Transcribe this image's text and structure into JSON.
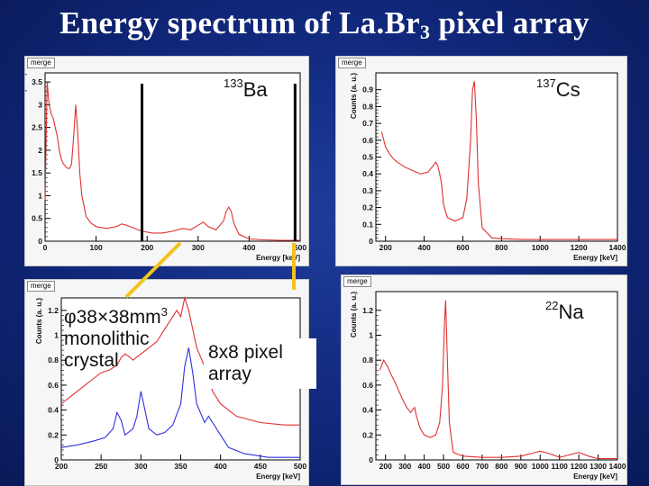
{
  "slide": {
    "title_main": "Energy spectrum of La.Br",
    "title_sub": "3",
    "title_end": " pixel array"
  },
  "panels": {
    "ba": {
      "merge_label": "merge",
      "isotope_mass": "133",
      "isotope_symbol": "Ba",
      "xlabel": "Energy [keV]",
      "ylabel": "Counts (a. u.)"
    },
    "cs": {
      "merge_label": "merge",
      "isotope_mass": "137",
      "isotope_symbol": "Cs",
      "xlabel": "Energy [keV]",
      "ylabel": "Counts (a. u.)"
    },
    "zoom": {
      "merge_label": "merge",
      "ylabel": "Counts (a. u.)",
      "xlabel": "Energy [keV]"
    },
    "na": {
      "merge_label": "merge",
      "isotope_mass": "22",
      "isotope_symbol": "Na",
      "xlabel": "Energy [keV]",
      "ylabel": "Counts (a. u.)"
    }
  },
  "callouts": {
    "crystal_line1_a": "φ38",
    "crystal_line1_b": "×",
    "crystal_line1_c": "38mm",
    "crystal_line1_sup": "3",
    "crystal_line2": "monolithic",
    "crystal_line3": "crystal",
    "pixel_line1": "8x8 pixel",
    "pixel_line2": "array"
  },
  "colors": {
    "background": "#12297e",
    "crystal_series": "#e03030",
    "pixel_series": "#3030e0",
    "connector": "#f0c419"
  },
  "chart_data": [
    {
      "id": "ba",
      "type": "line",
      "xlim": [
        0,
        500
      ],
      "ylim": [
        0,
        3.7
      ],
      "xticks": [
        0,
        100,
        200,
        300,
        400,
        500
      ],
      "yticks": [
        0,
        0.5,
        1,
        1.5,
        2,
        2.5,
        3,
        3.5
      ],
      "xlabel": "Energy [keV]",
      "ylabel": "Counts (a. u.)",
      "markers": [
        190,
        490
      ],
      "series": [
        {
          "color": "#e03030",
          "x": [
            0,
            4,
            8,
            12,
            16,
            20,
            24,
            28,
            32,
            36,
            40,
            44,
            48,
            52,
            56,
            60,
            64,
            68,
            72,
            76,
            80,
            90,
            100,
            120,
            140,
            150,
            160,
            175,
            190,
            210,
            230,
            250,
            270,
            285,
            300,
            310,
            320,
            335,
            350,
            355,
            360,
            365,
            370,
            380,
            400,
            430,
            460,
            490,
            500
          ],
          "y": [
            0.9,
            3.5,
            3.0,
            2.8,
            2.7,
            2.5,
            2.3,
            2.0,
            1.8,
            1.7,
            1.65,
            1.6,
            1.6,
            1.7,
            2.3,
            3.0,
            2.4,
            1.5,
            1.0,
            0.8,
            0.55,
            0.4,
            0.32,
            0.28,
            0.32,
            0.38,
            0.35,
            0.28,
            0.22,
            0.18,
            0.18,
            0.22,
            0.28,
            0.25,
            0.35,
            0.42,
            0.32,
            0.25,
            0.45,
            0.65,
            0.75,
            0.65,
            0.4,
            0.15,
            0.05,
            0.03,
            0.02,
            0.02,
            0.02
          ]
        }
      ]
    },
    {
      "id": "cs",
      "type": "line",
      "xlim": [
        150,
        1400
      ],
      "ylim": [
        0,
        1.0
      ],
      "xticks": [
        200,
        400,
        600,
        800,
        1000,
        1200,
        1400
      ],
      "yticks": [
        0,
        0.1,
        0.2,
        0.3,
        0.4,
        0.5,
        0.6,
        0.7,
        0.8,
        0.9
      ],
      "xlabel": "Energy [keV]",
      "ylabel": "Counts (a. u.)",
      "series": [
        {
          "color": "#e03030",
          "x": [
            180,
            200,
            220,
            240,
            260,
            300,
            340,
            380,
            420,
            440,
            460,
            470,
            480,
            490,
            500,
            520,
            560,
            600,
            620,
            640,
            650,
            660,
            670,
            680,
            700,
            750,
            800,
            900,
            1000,
            1100,
            1200,
            1300,
            1400
          ],
          "y": [
            0.65,
            0.56,
            0.52,
            0.49,
            0.47,
            0.44,
            0.42,
            0.4,
            0.41,
            0.44,
            0.47,
            0.45,
            0.4,
            0.34,
            0.22,
            0.14,
            0.12,
            0.14,
            0.25,
            0.6,
            0.9,
            0.95,
            0.72,
            0.35,
            0.08,
            0.02,
            0.015,
            0.01,
            0.01,
            0.01,
            0.01,
            0.01,
            0.01
          ]
        }
      ]
    },
    {
      "id": "zoom",
      "type": "line",
      "xlim": [
        200,
        500
      ],
      "ylim": [
        0,
        1.3
      ],
      "xticks": [
        200,
        250,
        300,
        350,
        400,
        450,
        500
      ],
      "yticks": [
        0,
        0.2,
        0.4,
        0.6,
        0.8,
        1,
        1.2
      ],
      "xlabel": "Energy [keV]",
      "ylabel": "Counts (a. u.)",
      "series": [
        {
          "color": "#e03030",
          "x": [
            200,
            210,
            220,
            230,
            240,
            250,
            260,
            270,
            275,
            280,
            285,
            290,
            300,
            310,
            320,
            330,
            340,
            345,
            350,
            355,
            360,
            365,
            370,
            380,
            390,
            400,
            420,
            450,
            480,
            500
          ],
          "y": [
            0.45,
            0.5,
            0.55,
            0.6,
            0.65,
            0.7,
            0.72,
            0.76,
            0.82,
            0.85,
            0.83,
            0.8,
            0.85,
            0.9,
            0.95,
            1.05,
            1.15,
            1.2,
            1.15,
            1.3,
            1.2,
            1.05,
            0.9,
            0.75,
            0.55,
            0.45,
            0.35,
            0.3,
            0.28,
            0.28
          ]
        }
      ]
    },
    {
      "id": "zoom-blue",
      "type": "line",
      "xlim": [
        200,
        500
      ],
      "ylim": [
        0,
        1.3
      ],
      "xticks": [
        200,
        250,
        300,
        350,
        400,
        450,
        500
      ],
      "yticks": [
        0,
        0.2,
        0.4,
        0.6,
        0.8,
        1,
        1.2
      ],
      "xlabel": "Energy [keV]",
      "ylabel": "Counts (a. u.)",
      "series": [
        {
          "color": "#3030e0",
          "x": [
            200,
            220,
            240,
            255,
            265,
            270,
            275,
            280,
            290,
            295,
            300,
            305,
            310,
            320,
            330,
            340,
            350,
            355,
            360,
            365,
            370,
            380,
            385,
            390,
            400,
            410,
            430,
            460,
            500
          ],
          "y": [
            0.1,
            0.12,
            0.15,
            0.18,
            0.25,
            0.38,
            0.32,
            0.2,
            0.25,
            0.35,
            0.55,
            0.4,
            0.25,
            0.2,
            0.22,
            0.28,
            0.45,
            0.75,
            0.9,
            0.7,
            0.45,
            0.3,
            0.35,
            0.3,
            0.2,
            0.1,
            0.05,
            0.02,
            0.02
          ]
        }
      ]
    },
    {
      "id": "na",
      "type": "line",
      "xlim": [
        150,
        1400
      ],
      "ylim": [
        0,
        1.35
      ],
      "xticks": [
        200,
        300,
        400,
        500,
        600,
        700,
        800,
        900,
        1000,
        1100,
        1200,
        1300,
        1400
      ],
      "yticks": [
        0,
        0.2,
        0.4,
        0.6,
        0.8,
        1,
        1.2
      ],
      "xlabel": "Energy [keV]",
      "ylabel": "Counts (a. u.)",
      "series": [
        {
          "color": "#e03030",
          "x": [
            170,
            190,
            210,
            230,
            250,
            270,
            290,
            310,
            330,
            340,
            350,
            360,
            380,
            400,
            430,
            460,
            480,
            495,
            505,
            511,
            518,
            530,
            550,
            600,
            700,
            800,
            900,
            950,
            1000,
            1050,
            1100,
            1150,
            1200,
            1250,
            1300,
            1400
          ],
          "y": [
            0.72,
            0.8,
            0.75,
            0.68,
            0.62,
            0.55,
            0.48,
            0.42,
            0.38,
            0.4,
            0.42,
            0.35,
            0.25,
            0.2,
            0.18,
            0.2,
            0.3,
            0.6,
            1.1,
            1.28,
            0.9,
            0.3,
            0.06,
            0.03,
            0.02,
            0.02,
            0.03,
            0.05,
            0.07,
            0.05,
            0.02,
            0.04,
            0.06,
            0.03,
            0.01,
            0.01
          ]
        }
      ]
    }
  ]
}
